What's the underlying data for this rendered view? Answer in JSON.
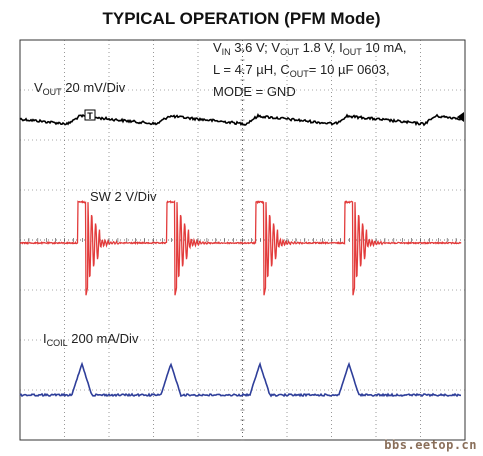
{
  "title": "TYPICAL OPERATION (PFM Mode)",
  "conditions": {
    "line1": {
      "vin_sym": "V",
      "vin_sub": "IN",
      "vin_val": " 3.6 V; ",
      "vout_sym": "V",
      "vout_sub": "OUT",
      "vout_val": " 1.8 V, ",
      "iout_sym": "I",
      "iout_sub": "OUT",
      "iout_val": " 10 mA,"
    },
    "line2": {
      "l_text": "L = 4.7 µH, ",
      "cout_sym": "C",
      "cout_sub": "OUT",
      "cout_val": "= 10 µF 0603,"
    },
    "line3": "MODE = GND"
  },
  "channel_labels": {
    "vout": {
      "sym": "V",
      "sub": "OUT",
      "scale": " 20 mV/Div"
    },
    "sw": {
      "text": "SW 2 V/Div"
    },
    "icoil": {
      "sym": "I",
      "sub": "COIL",
      "scale": " 200 mA/Div"
    }
  },
  "markers": {
    "trigger": "T"
  },
  "watermark": "bbs.eetop.cn",
  "chart_data": {
    "type": "line",
    "title": "TYPICAL OPERATION (PFM Mode)",
    "grid": true,
    "divisions": {
      "x": 10,
      "y": 8
    },
    "series": [
      {
        "name": "VOUT",
        "color": "#000000",
        "scale": "20 mV/Div",
        "waveform": "sawtooth ripple (slow discharge, sharp rise at each burst)"
      },
      {
        "name": "SW",
        "color": "#e23b3b",
        "scale": "2 V/Div",
        "waveform": "rectangular pulses with ringing after each pulse"
      },
      {
        "name": "ICOIL",
        "color": "#2f3f9a",
        "scale": "200 mA/Div",
        "waveform": "triangular current pulses"
      }
    ],
    "pulse_positions_div": [
      1.3,
      3.3,
      5.3,
      7.3
    ]
  }
}
